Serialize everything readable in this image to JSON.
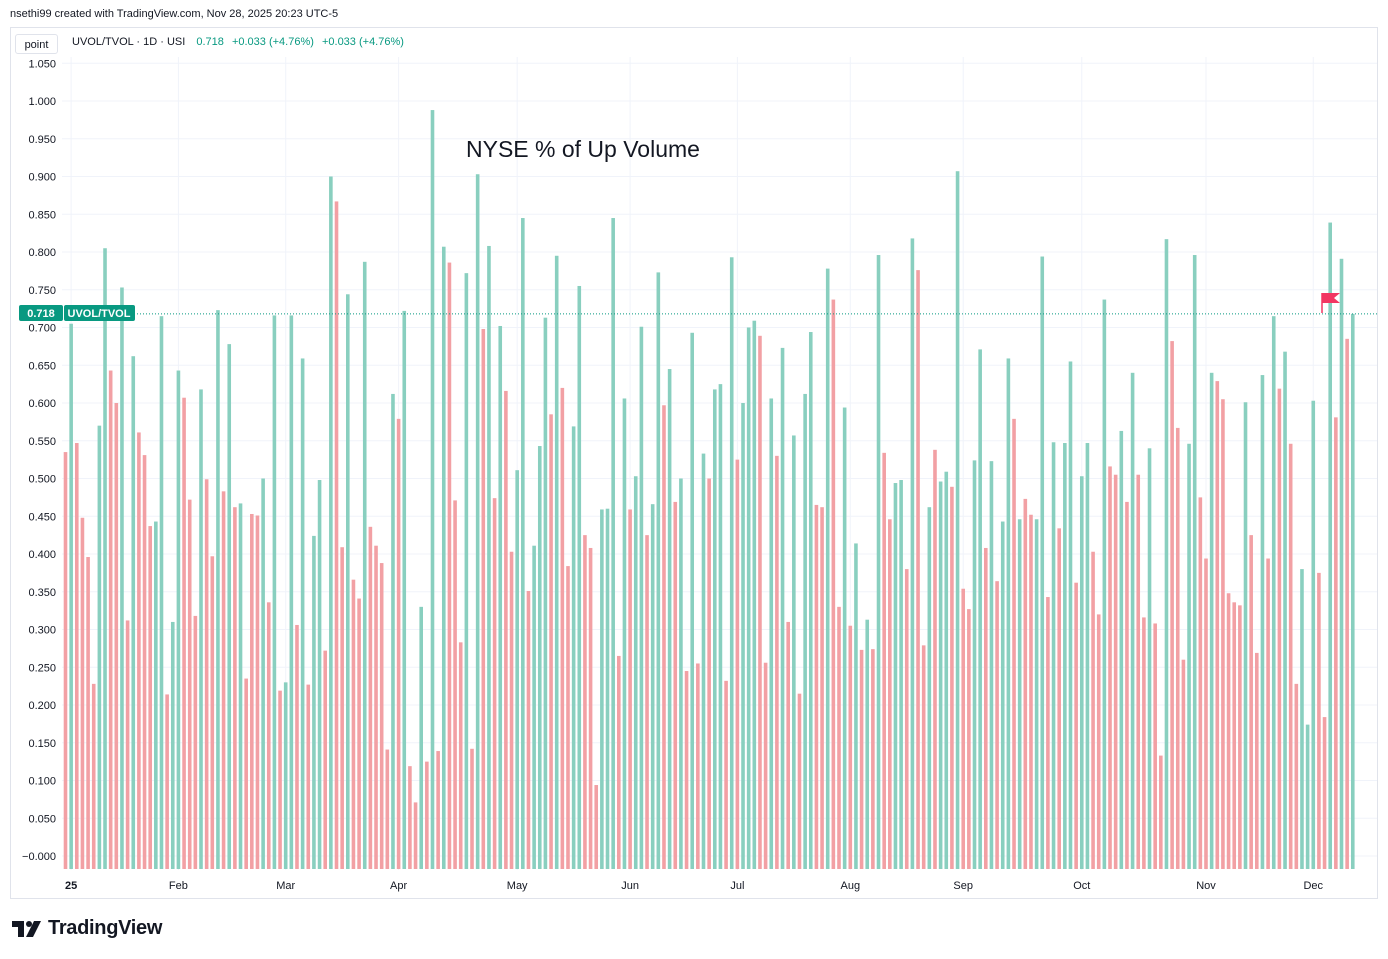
{
  "header": {
    "attribution": "nsethi99 created with TradingView.com, Nov 28, 2025 20:23 UTC-5",
    "point_label": "point"
  },
  "legend": {
    "symbol": "UVOL/TVOL · 1D · USI",
    "value": "0.718",
    "change1": "+0.033 (+4.76%)",
    "change2": "+0.033 (+4.76%)"
  },
  "last_label": {
    "value": "0.718",
    "name": "UVOL/TVOL"
  },
  "logo": {
    "text": "TradingView"
  },
  "colors": {
    "up": "#89cfbf",
    "down": "#f2a0a4",
    "accent": "#089981",
    "flag": "#f23662"
  },
  "chart_data": {
    "type": "bar",
    "title": "NYSE % of Up Volume",
    "series_name": "UVOL/TVOL",
    "ylim": [
      -0.012,
      1.058
    ],
    "yticks": [
      1.05,
      1.0,
      0.95,
      0.9,
      0.85,
      0.8,
      0.75,
      0.7,
      0.65,
      0.6,
      0.55,
      0.5,
      0.45,
      0.4,
      0.35,
      0.3,
      0.25,
      0.2,
      0.15,
      0.1,
      0.05,
      0.0
    ],
    "ytick_labels": [
      "1.050",
      "1.000",
      "0.950",
      "0.900",
      "0.850",
      "0.800",
      "0.750",
      "0.700",
      "0.650",
      "0.600",
      "0.550",
      "0.500",
      "0.450",
      "0.400",
      "0.350",
      "0.300",
      "0.250",
      "0.200",
      "0.150",
      "0.100",
      "0.050",
      "−0.000"
    ],
    "x_ticks": [
      {
        "label": "25",
        "index": 1
      },
      {
        "label": "Feb",
        "index": 20
      },
      {
        "label": "Mar",
        "index": 39
      },
      {
        "label": "Apr",
        "index": 59
      },
      {
        "label": "May",
        "index": 80
      },
      {
        "label": "Jun",
        "index": 100
      },
      {
        "label": "Jul",
        "index": 119
      },
      {
        "label": "Aug",
        "index": 139
      },
      {
        "label": "Sep",
        "index": 159
      },
      {
        "label": "Oct",
        "index": 180
      },
      {
        "label": "Nov",
        "index": 202
      },
      {
        "label": "Dec",
        "index": 221
      }
    ],
    "values": [
      0.535,
      0.705,
      0.547,
      0.448,
      0.396,
      0.228,
      0.57,
      0.805,
      0.643,
      0.6,
      0.753,
      0.312,
      0.662,
      0.561,
      0.531,
      0.437,
      0.443,
      0.715,
      0.214,
      0.31,
      0.643,
      0.607,
      0.472,
      0.318,
      0.618,
      0.499,
      0.397,
      0.723,
      0.483,
      0.678,
      0.462,
      0.467,
      0.235,
      0.453,
      0.451,
      0.5,
      0.336,
      0.716,
      0.219,
      0.23,
      0.716,
      0.306,
      0.659,
      0.227,
      0.424,
      0.498,
      0.272,
      0.9,
      0.867,
      0.409,
      0.744,
      0.366,
      0.341,
      0.787,
      0.436,
      0.411,
      0.388,
      0.141,
      0.612,
      0.579,
      0.722,
      0.119,
      0.071,
      0.33,
      0.125,
      0.988,
      0.139,
      0.807,
      0.786,
      0.471,
      0.283,
      0.772,
      0.142,
      0.903,
      0.698,
      0.808,
      0.474,
      0.702,
      0.616,
      0.403,
      0.511,
      0.845,
      0.351,
      0.411,
      0.543,
      0.713,
      0.585,
      0.795,
      0.62,
      0.384,
      0.569,
      0.755,
      0.425,
      0.408,
      0.094,
      0.459,
      0.46,
      0.845,
      0.265,
      0.606,
      0.459,
      0.503,
      0.701,
      0.425,
      0.466,
      0.773,
      0.597,
      0.645,
      0.469,
      0.5,
      0.245,
      0.693,
      0.255,
      0.533,
      0.5,
      0.618,
      0.625,
      0.232,
      0.793,
      0.525,
      0.6,
      0.7,
      0.709,
      0.689,
      0.256,
      0.606,
      0.53,
      0.673,
      0.31,
      0.557,
      0.215,
      0.612,
      0.694,
      0.465,
      0.462,
      0.778,
      0.737,
      0.33,
      0.594,
      0.305,
      0.414,
      0.273,
      0.313,
      0.274,
      0.796,
      0.534,
      0.446,
      0.494,
      0.498,
      0.38,
      0.818,
      0.776,
      0.279,
      0.462,
      0.538,
      0.496,
      0.509,
      0.489,
      0.907,
      0.354,
      0.327,
      0.524,
      0.671,
      0.408,
      0.523,
      0.364,
      0.443,
      0.659,
      0.579,
      0.446,
      0.473,
      0.452,
      0.446,
      0.794,
      0.343,
      0.548,
      0.434,
      0.547,
      0.655,
      0.362,
      0.503,
      0.547,
      0.403,
      0.32,
      0.737,
      0.516,
      0.505,
      0.563,
      0.469,
      0.64,
      0.505,
      0.316,
      0.54,
      0.308,
      0.133,
      0.817,
      0.682,
      0.567,
      0.26,
      0.546,
      0.796,
      0.475,
      0.394,
      0.64,
      0.629,
      0.605,
      0.348,
      0.336,
      0.332,
      0.601,
      0.425,
      0.269,
      0.637,
      0.394,
      0.715,
      0.619,
      0.668,
      0.546,
      0.228,
      0.38,
      0.174,
      0.603,
      0.375,
      0.184,
      0.839,
      0.581,
      0.791,
      0.685,
      0.718
    ],
    "colors": [
      "d",
      "u",
      "d",
      "d",
      "d",
      "d",
      "u",
      "u",
      "d",
      "d",
      "u",
      "d",
      "u",
      "d",
      "d",
      "d",
      "u",
      "u",
      "d",
      "u",
      "u",
      "d",
      "d",
      "d",
      "u",
      "d",
      "d",
      "u",
      "d",
      "u",
      "d",
      "u",
      "d",
      "d",
      "d",
      "u",
      "d",
      "u",
      "d",
      "u",
      "u",
      "d",
      "u",
      "d",
      "u",
      "u",
      "d",
      "u",
      "d",
      "d",
      "u",
      "d",
      "d",
      "u",
      "d",
      "d",
      "d",
      "d",
      "u",
      "d",
      "u",
      "d",
      "d",
      "u",
      "d",
      "u",
      "d",
      "u",
      "d",
      "d",
      "d",
      "u",
      "d",
      "u",
      "d",
      "u",
      "d",
      "u",
      "d",
      "d",
      "u",
      "u",
      "d",
      "u",
      "u",
      "u",
      "d",
      "u",
      "d",
      "d",
      "u",
      "u",
      "d",
      "d",
      "d",
      "u",
      "u",
      "u",
      "d",
      "u",
      "d",
      "u",
      "u",
      "d",
      "u",
      "u",
      "d",
      "u",
      "d",
      "u",
      "d",
      "u",
      "d",
      "u",
      "d",
      "u",
      "u",
      "d",
      "u",
      "d",
      "u",
      "u",
      "u",
      "d",
      "d",
      "u",
      "d",
      "u",
      "d",
      "u",
      "d",
      "u",
      "u",
      "d",
      "d",
      "u",
      "d",
      "d",
      "u",
      "d",
      "u",
      "d",
      "u",
      "d",
      "u",
      "d",
      "d",
      "u",
      "u",
      "d",
      "u",
      "d",
      "d",
      "u",
      "d",
      "u",
      "u",
      "d",
      "u",
      "d",
      "d",
      "u",
      "u",
      "d",
      "u",
      "d",
      "u",
      "u",
      "d",
      "u",
      "d",
      "d",
      "u",
      "u",
      "d",
      "u",
      "d",
      "u",
      "u",
      "d",
      "u",
      "u",
      "d",
      "d",
      "u",
      "d",
      "d",
      "u",
      "d",
      "u",
      "d",
      "d",
      "u",
      "d",
      "d",
      "u",
      "d",
      "d",
      "d",
      "u",
      "u",
      "d",
      "d",
      "u",
      "d",
      "d",
      "d",
      "d",
      "d",
      "u",
      "d",
      "d",
      "u",
      "d",
      "u",
      "d",
      "u",
      "d",
      "d",
      "u",
      "u",
      "u",
      "d",
      "d",
      "u",
      "d",
      "u",
      "d",
      "u"
    ]
  }
}
